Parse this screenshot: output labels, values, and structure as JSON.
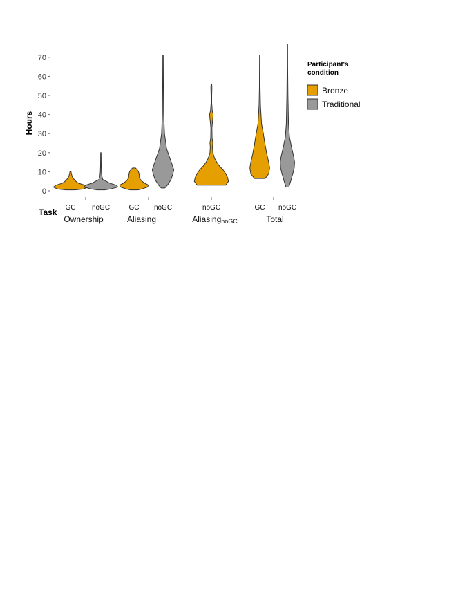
{
  "chart_data": {
    "type": "violin",
    "ylabel": "Hours",
    "xlabel": "Task",
    "ylim": [
      -3,
      77
    ],
    "yticks": [
      0,
      10,
      20,
      30,
      40,
      50,
      60,
      70
    ],
    "grid": false,
    "legend": {
      "title_line1": "Participant's",
      "title_line2": "condition",
      "placement": "right",
      "entries": [
        {
          "key": "bronze",
          "label": "Bronze",
          "color": "#E69F00"
        },
        {
          "key": "traditional",
          "label": "Traditional",
          "color": "#999999"
        }
      ]
    },
    "tasks": [
      {
        "name": "Ownership",
        "sub": ""
      },
      {
        "name": "Aliasing",
        "sub": ""
      },
      {
        "name": "Aliasing",
        "sub": "noGC"
      },
      {
        "name": "Total",
        "sub": ""
      }
    ],
    "violins": [
      {
        "task": 0,
        "condition_label": "GC",
        "group": "bronze",
        "profile": [
          [
            0.5,
            0.25
          ],
          [
            1,
            0.75
          ],
          [
            2,
            0.95
          ],
          [
            3,
            0.8
          ],
          [
            4,
            0.45
          ],
          [
            5,
            0.3
          ],
          [
            6,
            0.2
          ],
          [
            7,
            0.12
          ],
          [
            8,
            0.08
          ],
          [
            9,
            0.05
          ],
          [
            10,
            0.03
          ]
        ]
      },
      {
        "task": 0,
        "condition_label": "noGC",
        "group": "traditional",
        "profile": [
          [
            0.5,
            0.2
          ],
          [
            1,
            0.55
          ],
          [
            2,
            0.95
          ],
          [
            3,
            0.85
          ],
          [
            4,
            0.5
          ],
          [
            5,
            0.3
          ],
          [
            6,
            0.1
          ],
          [
            8,
            0.05
          ],
          [
            10,
            0.03
          ],
          [
            13,
            0.02
          ],
          [
            16,
            0.015
          ],
          [
            20,
            0.01
          ]
        ]
      },
      {
        "task": 1,
        "condition_label": "GC",
        "group": "bronze",
        "profile": [
          [
            0.5,
            0.2
          ],
          [
            1,
            0.45
          ],
          [
            2,
            0.75
          ],
          [
            3,
            0.8
          ],
          [
            4,
            0.6
          ],
          [
            5,
            0.45
          ],
          [
            6,
            0.35
          ],
          [
            7,
            0.3
          ],
          [
            8,
            0.3
          ],
          [
            9,
            0.28
          ],
          [
            10,
            0.25
          ],
          [
            11,
            0.18
          ],
          [
            12,
            0.08
          ]
        ]
      },
      {
        "task": 1,
        "condition_label": "noGC",
        "group": "traditional",
        "profile": [
          [
            1.5,
            0.1
          ],
          [
            3,
            0.25
          ],
          [
            6,
            0.45
          ],
          [
            9,
            0.55
          ],
          [
            11,
            0.6
          ],
          [
            14,
            0.5
          ],
          [
            18,
            0.35
          ],
          [
            22,
            0.2
          ],
          [
            30,
            0.08
          ],
          [
            40,
            0.04
          ],
          [
            55,
            0.02
          ],
          [
            71,
            0.01
          ]
        ]
      },
      {
        "task": 2,
        "condition_label": "noGC",
        "group": "bronze",
        "profile": [
          [
            3,
            0.8
          ],
          [
            5,
            0.95
          ],
          [
            7,
            0.9
          ],
          [
            9,
            0.8
          ],
          [
            11,
            0.65
          ],
          [
            13,
            0.45
          ],
          [
            15,
            0.3
          ],
          [
            17,
            0.18
          ],
          [
            20,
            0.08
          ],
          [
            23,
            0.06
          ],
          [
            25,
            0.08
          ],
          [
            28,
            0.04
          ],
          [
            33,
            0.03
          ],
          [
            38,
            0.08
          ],
          [
            40,
            0.1
          ],
          [
            42,
            0.05
          ],
          [
            46,
            0.02
          ],
          [
            50,
            0.02
          ],
          [
            54,
            0.03
          ],
          [
            56,
            0.02
          ]
        ]
      },
      {
        "task": 3,
        "condition_label": "GC",
        "group": "bronze",
        "profile": [
          [
            6.5,
            0.3
          ],
          [
            9,
            0.5
          ],
          [
            12,
            0.55
          ],
          [
            15,
            0.5
          ],
          [
            19,
            0.4
          ],
          [
            24,
            0.3
          ],
          [
            30,
            0.2
          ],
          [
            35,
            0.1
          ],
          [
            45,
            0.04
          ],
          [
            55,
            0.02
          ],
          [
            71,
            0.01
          ]
        ]
      },
      {
        "task": 3,
        "condition_label": "noGC",
        "group": "traditional",
        "profile": [
          [
            2,
            0.08
          ],
          [
            5,
            0.18
          ],
          [
            9,
            0.3
          ],
          [
            12,
            0.38
          ],
          [
            15,
            0.4
          ],
          [
            18,
            0.35
          ],
          [
            22,
            0.25
          ],
          [
            28,
            0.12
          ],
          [
            35,
            0.06
          ],
          [
            50,
            0.03
          ],
          [
            65,
            0.015
          ],
          [
            77,
            0.01
          ]
        ]
      }
    ],
    "tick_marks_x_slots": [
      1,
      3,
      5
    ]
  }
}
